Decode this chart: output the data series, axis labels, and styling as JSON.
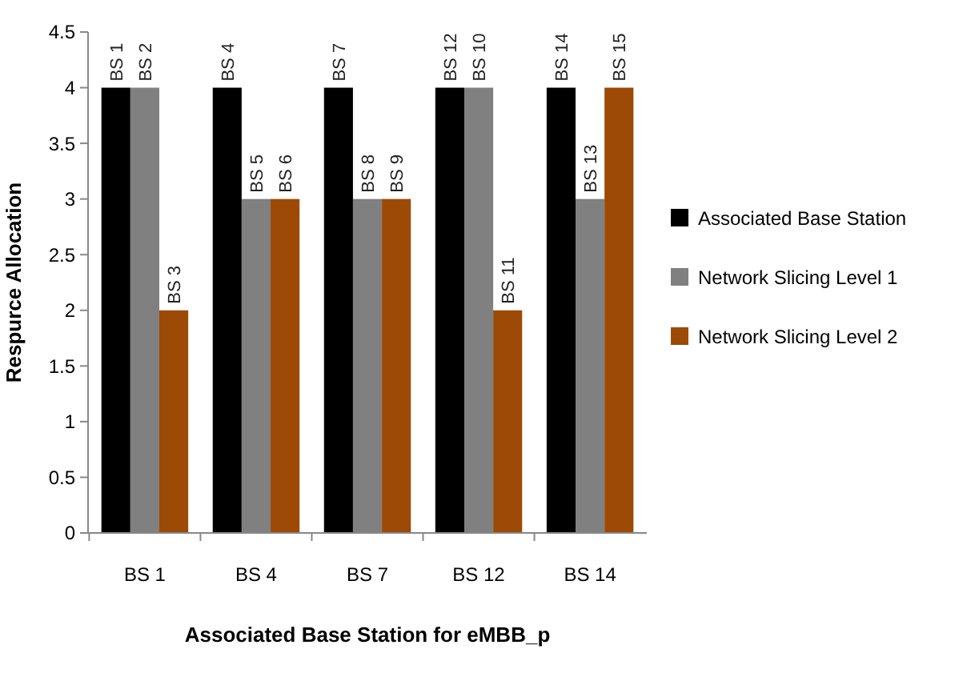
{
  "chart_data": {
    "type": "bar",
    "xlabel": "Associated Base Station for eMBB_p",
    "ylabel": "Respurce Allocation",
    "categories": [
      "BS 1",
      "BS 4",
      "BS 7",
      "BS 12",
      "BS 14"
    ],
    "series": [
      {
        "name": "Associated Base Station",
        "color": "#000000",
        "values": [
          4,
          4,
          4,
          4,
          4
        ],
        "value_labels": [
          "BS 1",
          "BS 4",
          "BS 7",
          "BS 12",
          "BS 14"
        ]
      },
      {
        "name": "Network Slicing Level 1",
        "color": "#808080",
        "values": [
          4,
          3,
          3,
          4,
          3
        ],
        "value_labels": [
          "BS 2",
          "BS 5",
          "BS 8",
          "BS 10",
          "BS 13"
        ]
      },
      {
        "name": "Network Slicing Level 2",
        "color": "#9c4a06",
        "values": [
          2,
          3,
          3,
          2,
          4
        ],
        "value_labels": [
          "BS 3",
          "BS 6",
          "BS 9",
          "BS 11",
          "BS 15"
        ]
      }
    ],
    "ylim": [
      0,
      4.5
    ],
    "yticks": [
      0,
      0.5,
      1,
      1.5,
      2,
      2.5,
      3,
      3.5,
      4,
      4.5
    ],
    "grid": false,
    "legend": "right"
  }
}
